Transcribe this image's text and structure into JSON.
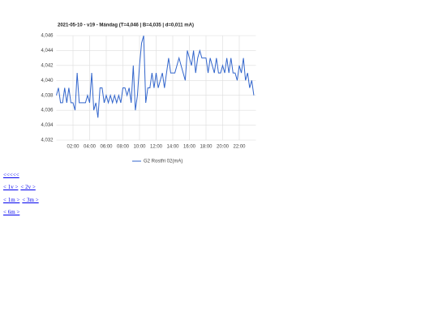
{
  "chart_data": {
    "type": "line",
    "title": "2021-05-10 - v19 - Mándag (T=4,046 | B=4,035 | d=0,011 mA)",
    "x": [
      0,
      0.25,
      0.5,
      0.75,
      1,
      1.25,
      1.5,
      1.75,
      2,
      2.25,
      2.5,
      2.75,
      3,
      3.25,
      3.5,
      3.75,
      4,
      4.25,
      4.5,
      4.75,
      5,
      5.25,
      5.5,
      5.75,
      6,
      6.25,
      6.5,
      6.75,
      7,
      7.25,
      7.5,
      7.75,
      8,
      8.25,
      8.5,
      8.75,
      9,
      9.25,
      9.5,
      9.75,
      10,
      10.25,
      10.5,
      10.75,
      11,
      11.25,
      11.5,
      11.75,
      12,
      12.25,
      12.5,
      12.75,
      13,
      13.25,
      13.5,
      13.75,
      14,
      14.25,
      14.5,
      14.75,
      15,
      15.25,
      15.5,
      15.75,
      16,
      16.25,
      16.5,
      16.75,
      17,
      17.25,
      17.5,
      17.75,
      18,
      18.25,
      18.5,
      18.75,
      19,
      19.25,
      19.5,
      19.75,
      20,
      20.25,
      20.5,
      20.75,
      21,
      21.25,
      21.5,
      21.75,
      22,
      22.25,
      22.5,
      22.75,
      23,
      23.25,
      23.5,
      23.75
    ],
    "series": [
      {
        "name": "G2 Rostfri 02(mA)",
        "color": "#3366cc",
        "values": [
          4.038,
          4.039,
          4.037,
          4.037,
          4.039,
          4.037,
          4.039,
          4.037,
          4.037,
          4.036,
          4.041,
          4.037,
          4.037,
          4.037,
          4.037,
          4.038,
          4.037,
          4.041,
          4.036,
          4.037,
          4.035,
          4.039,
          4.039,
          4.037,
          4.038,
          4.037,
          4.038,
          4.037,
          4.038,
          4.037,
          4.038,
          4.037,
          4.039,
          4.039,
          4.038,
          4.039,
          4.037,
          4.042,
          4.036,
          4.038,
          4.042,
          4.045,
          4.046,
          4.037,
          4.039,
          4.039,
          4.041,
          4.039,
          4.041,
          4.039,
          4.04,
          4.041,
          4.039,
          4.041,
          4.043,
          4.041,
          4.041,
          4.041,
          4.042,
          4.043,
          4.042,
          4.041,
          4.04,
          4.044,
          4.043,
          4.042,
          4.044,
          4.041,
          4.043,
          4.044,
          4.043,
          4.043,
          4.043,
          4.041,
          4.043,
          4.042,
          4.041,
          4.043,
          4.041,
          4.041,
          4.042,
          4.041,
          4.043,
          4.041,
          4.043,
          4.041,
          4.041,
          4.04,
          4.042,
          4.041,
          4.043,
          4.04,
          4.041,
          4.039,
          4.04,
          4.038
        ]
      }
    ],
    "xlim": [
      0,
      24
    ],
    "xticks": [
      {
        "value": 2,
        "label": "02:00"
      },
      {
        "value": 4,
        "label": "04:00"
      },
      {
        "value": 6,
        "label": "06:00"
      },
      {
        "value": 8,
        "label": "08:00"
      },
      {
        "value": 10,
        "label": "10:00"
      },
      {
        "value": 12,
        "label": "12:00"
      },
      {
        "value": 14,
        "label": "14:00"
      },
      {
        "value": 16,
        "label": "16:00"
      },
      {
        "value": 18,
        "label": "18:00"
      },
      {
        "value": 20,
        "label": "20:00"
      },
      {
        "value": 22,
        "label": "22:00"
      }
    ],
    "ylim": [
      4.032,
      4.046
    ],
    "yticks": [
      {
        "value": 4.032,
        "label": "4,032"
      },
      {
        "value": 4.034,
        "label": "4,034"
      },
      {
        "value": 4.036,
        "label": "4,036"
      },
      {
        "value": 4.038,
        "label": "4,038"
      },
      {
        "value": 4.04,
        "label": "4,040"
      },
      {
        "value": 4.042,
        "label": "4,042"
      },
      {
        "value": 4.044,
        "label": "4,044"
      },
      {
        "value": 4.046,
        "label": "4,046"
      }
    ],
    "grid": true,
    "legend": "bottom"
  },
  "links": [
    "<<<<<",
    "< 1v >",
    "< 2v >",
    "< 1m >",
    "< 3m >",
    "< 6m >"
  ]
}
